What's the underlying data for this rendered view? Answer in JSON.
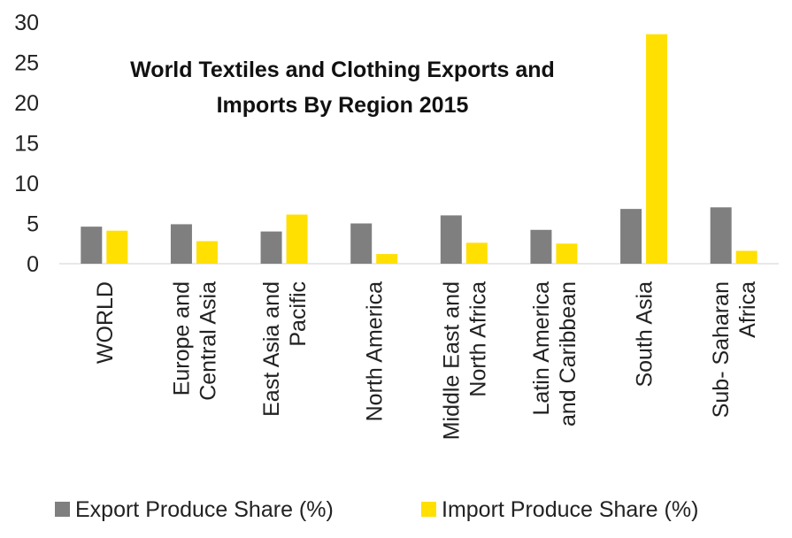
{
  "chart_data": {
    "type": "bar",
    "title_lines": [
      "World Textiles and Clothing Exports and",
      "Imports By Region 2015"
    ],
    "categories": [
      [
        "WORLD"
      ],
      [
        "Europe and",
        "Central Asia"
      ],
      [
        "East Asia and",
        "Pacific"
      ],
      [
        "North America"
      ],
      [
        "Middle East and",
        "North Africa"
      ],
      [
        "Latin America",
        "and Caribbean"
      ],
      [
        "South Asia"
      ],
      [
        "Sub- Saharan",
        "Africa"
      ]
    ],
    "series": [
      {
        "name": "Export Produce Share (%)",
        "color": "#7f7f7f",
        "values": [
          4.6,
          4.9,
          4.0,
          5.0,
          6.0,
          4.2,
          6.8,
          7.0
        ]
      },
      {
        "name": "Import Produce Share (%)",
        "color": "#ffe000",
        "values": [
          4.1,
          2.8,
          6.1,
          1.2,
          2.6,
          2.5,
          28.5,
          1.6
        ]
      }
    ],
    "yticks": [
      "0",
      "5",
      "10",
      "15",
      "20",
      "25",
      "30"
    ],
    "ylim": [
      0,
      30
    ],
    "grid": false,
    "legend_position": "bottom"
  }
}
